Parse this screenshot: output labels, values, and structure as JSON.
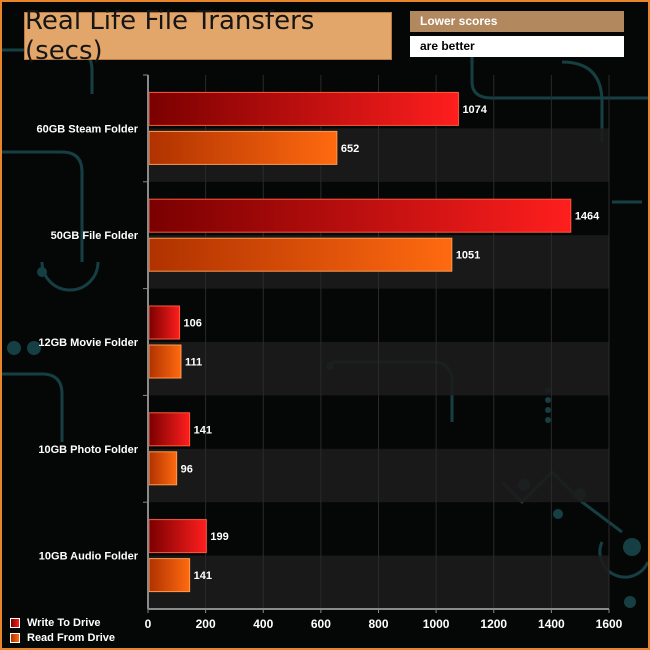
{
  "note": {
    "line1": "Lower scores",
    "line2": "are better"
  },
  "colors": {
    "write_dark": "#7a0000",
    "write_light": "#ff1e1e",
    "read_dark": "#b03200",
    "read_light": "#ff6a10",
    "band": "#1c1c1c",
    "frame": "#e8842a",
    "circuit": "#1b4a4e"
  },
  "chart_data": {
    "type": "bar",
    "orientation": "horizontal",
    "title": "Real Life File Transfers (secs)",
    "categories": [
      "60GB Steam Folder",
      "50GB File Folder",
      "12GB Movie Folder",
      "10GB Photo Folder",
      "10GB Audio Folder"
    ],
    "series": [
      {
        "name": "Write To  Drive",
        "values": [
          1074,
          1464,
          106,
          141,
          199
        ]
      },
      {
        "name": "Read From  Drive",
        "values": [
          652,
          1051,
          111,
          96,
          141
        ]
      }
    ],
    "xlim": [
      0,
      1600
    ],
    "xticks": [
      0,
      200,
      400,
      600,
      800,
      1000,
      1200,
      1400,
      1600
    ],
    "legend": "bottom-left"
  }
}
